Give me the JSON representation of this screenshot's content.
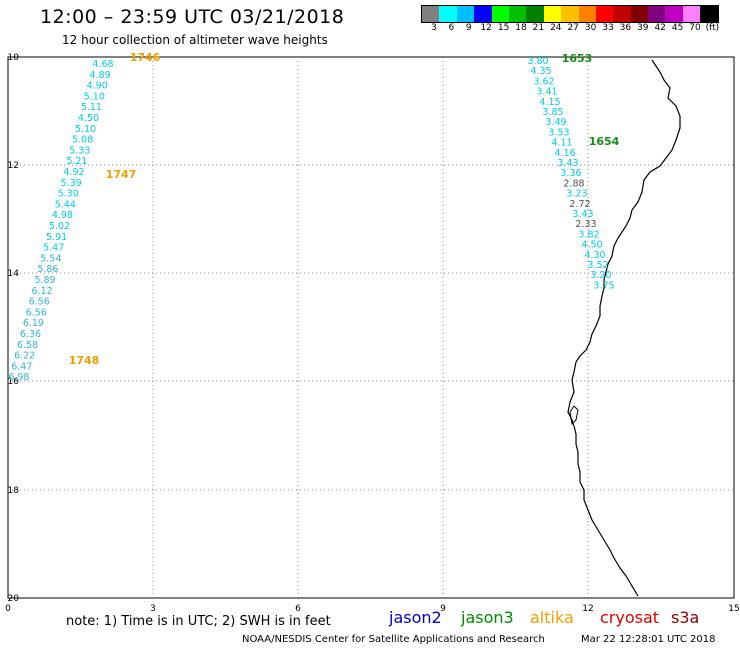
{
  "header": {
    "title": "12:00 – 23:59 UTC 03/21/2018",
    "subtitle": "12 hour collection of altimeter wave heights"
  },
  "color_scale": {
    "labels": [
      "3",
      "6",
      "9",
      "12",
      "15",
      "18",
      "21",
      "24",
      "27",
      "30",
      "33",
      "36",
      "39",
      "42",
      "45",
      "70",
      "(ft)"
    ],
    "colors": [
      "#808080",
      "#00ffff",
      "#00bfff",
      "#0000ff",
      "#00ff00",
      "#00c000",
      "#008000",
      "#ffff00",
      "#ffc000",
      "#ff8000",
      "#ff0000",
      "#c00000",
      "#800000",
      "#800080",
      "#c000c0",
      "#ff80ff",
      "#000000"
    ]
  },
  "map": {
    "lat_labels": [
      "10",
      "12",
      "14",
      "16",
      "18",
      "20"
    ],
    "lon_labels": [
      "0",
      "3",
      "6",
      "9",
      "12",
      "15"
    ],
    "colors": {
      "cyan": "#00ccee",
      "teal": "#33b5dd",
      "gray": "#555555",
      "orange": "#f0a000",
      "green": "#1a8a1a",
      "grid": "#888888",
      "coast": "#000000"
    },
    "track_left": {
      "values": [
        "4.68",
        "4.89",
        "4.90",
        "5.10",
        "5.11",
        "4.50",
        "5.10",
        "5.08",
        "5.33",
        "5.21",
        "4.92",
        "5.39",
        "5.30",
        "5.44",
        "4.98",
        "5.02",
        "5.91",
        "5.47",
        "5.54",
        "5.86",
        "5.89",
        "6.12",
        "6.56",
        "6.56",
        "6.19",
        "6.36",
        "6.58",
        "6.22",
        "6.47",
        "6.98"
      ],
      "times": [
        "1746",
        "1747",
        "1748"
      ]
    },
    "track_right": {
      "values": [
        "3.80",
        "4.35",
        "3.62",
        "3.41",
        "4.15",
        "3.85",
        "3.49",
        "3.53",
        "4.11",
        "4.16",
        "3.43",
        "3.36",
        "2.88",
        "3.23",
        "2.72",
        "3.43",
        "2.33",
        "3.82",
        "4.50",
        "4.30",
        "3.52",
        "3.20",
        "3.75"
      ],
      "times": [
        "1653",
        "1654"
      ]
    }
  },
  "footer": {
    "note": "note:  1) Time is in UTC;  2) SWH is in feet",
    "missions": [
      {
        "name": "jason2",
        "color": "#0000cc"
      },
      {
        "name": "jason3",
        "color": "#008800"
      },
      {
        "name": "altika",
        "color": "#f0a000"
      },
      {
        "name": "cryosat",
        "color": "#dd0000"
      },
      {
        "name": "s3a",
        "color": "#880000"
      }
    ],
    "credit": "NOAA/NESDIS Center for Satellite Applications and Research",
    "timestamp": "Mar 22 12:28:01 UTC 2018"
  }
}
